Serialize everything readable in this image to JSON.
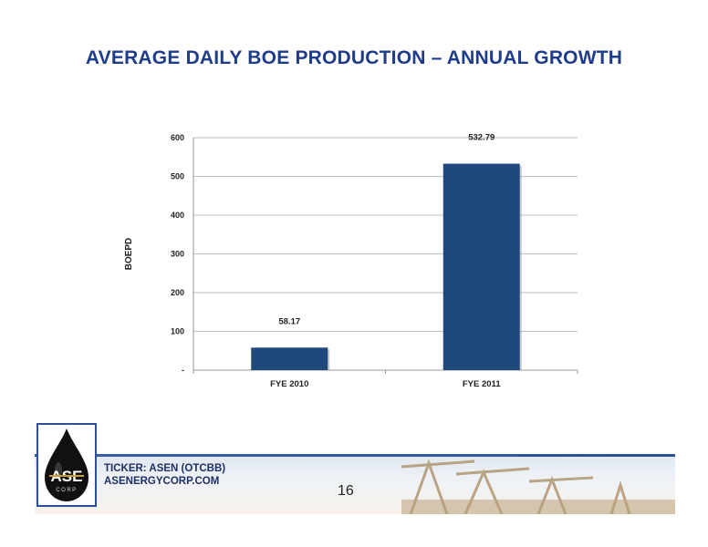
{
  "slide": {
    "title": "AVERAGE DAILY BOE PRODUCTION – ANNUAL GROWTH",
    "page_number": "16"
  },
  "footer": {
    "ticker": "TICKER: ASEN (OTCBB)",
    "website": "ASENERGYCORP.COM",
    "logo_text": "ASE",
    "logo_subtext": "CORP"
  },
  "colors": {
    "title": "#1f3c88",
    "bar": "#1f497d",
    "brand": "#2c4f96"
  },
  "chart_data": {
    "type": "bar",
    "title": "",
    "xlabel": "",
    "ylabel": "BOEPD",
    "categories": [
      "FYE 2010",
      "FYE 2011"
    ],
    "values": [
      58.17,
      532.79
    ],
    "data_labels": [
      "58.17",
      "532.79"
    ],
    "ylim": [
      0,
      600
    ],
    "yticks": [
      0,
      100,
      200,
      300,
      400,
      500,
      600
    ],
    "ytick_labels": [
      "-",
      "100",
      "200",
      "300",
      "400",
      "500",
      "600"
    ],
    "grid": true,
    "legend": "none"
  }
}
